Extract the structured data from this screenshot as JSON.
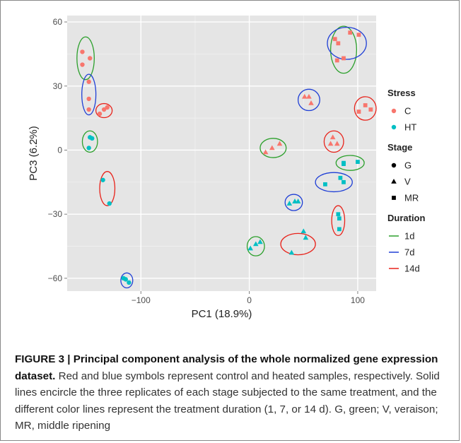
{
  "chart_data": {
    "type": "scatter",
    "xlabel": "PC1 (18.9%)",
    "ylabel": "PC3 (6.2%)",
    "xlim": [
      -168,
      117
    ],
    "ylim": [
      -66,
      63
    ],
    "xticks": [
      -100,
      0,
      100
    ],
    "xtick_labels": [
      "−100",
      "0",
      "100"
    ],
    "yticks": [
      -60,
      -30,
      0,
      30,
      60
    ],
    "ytick_labels": [
      "−60",
      "−30",
      "0",
      "30",
      "60"
    ],
    "grid": true,
    "legend_placement": "right",
    "legends": [
      {
        "title": "Stress",
        "kind": "color",
        "items": [
          {
            "label": "C",
            "color": "#F8766D"
          },
          {
            "label": "HT",
            "color": "#00BFC4"
          }
        ]
      },
      {
        "title": "Stage",
        "kind": "shape",
        "items": [
          {
            "label": "G",
            "shape": "circle"
          },
          {
            "label": "V",
            "shape": "triangle"
          },
          {
            "label": "MR",
            "shape": "square"
          }
        ]
      },
      {
        "title": "Duration",
        "kind": "line",
        "items": [
          {
            "label": "1d",
            "color": "#2CA02C"
          },
          {
            "label": "7d",
            "color": "#1F3FD6"
          },
          {
            "label": "14d",
            "color": "#E8231B"
          }
        ]
      }
    ],
    "groups": [
      {
        "stress": "C",
        "stage": "G",
        "duration": "1d",
        "ellipse": {
          "cx": -151,
          "cy": 43,
          "rx": 8,
          "ry": 10
        },
        "points": [
          [
            -154,
            46
          ],
          [
            -147,
            43
          ],
          [
            -154,
            40
          ]
        ]
      },
      {
        "stress": "C",
        "stage": "G",
        "duration": "7d",
        "ellipse": {
          "cx": -148,
          "cy": 26,
          "rx": 6.5,
          "ry": 9.5
        },
        "points": [
          [
            -148,
            32
          ],
          [
            -148,
            24
          ],
          [
            -148,
            19
          ]
        ]
      },
      {
        "stress": "C",
        "stage": "G",
        "duration": "14d",
        "ellipse": {
          "cx": -134,
          "cy": 18.5,
          "rx": 7.5,
          "ry": 3.3
        },
        "points": [
          [
            -138,
            17
          ],
          [
            -134,
            19
          ],
          [
            -131,
            20
          ]
        ]
      },
      {
        "stress": "HT",
        "stage": "G",
        "duration": "1d",
        "ellipse": {
          "cx": -147,
          "cy": 4,
          "rx": 7,
          "ry": 5
        },
        "points": [
          [
            -147,
            6
          ],
          [
            -145,
            5.5
          ],
          [
            -148,
            1
          ]
        ]
      },
      {
        "stress": "HT",
        "stage": "G",
        "duration": "14d",
        "ellipse": {
          "cx": -131,
          "cy": -18,
          "rx": 7,
          "ry": 8
        },
        "points": [
          [
            -135,
            -14
          ],
          [
            -129,
            -25
          ]
        ]
      },
      {
        "stress": "HT",
        "stage": "G",
        "duration": "7d",
        "ellipse": {
          "cx": -113,
          "cy": -61,
          "rx": 5.5,
          "ry": 3.5
        },
        "points": [
          [
            -116,
            -60
          ],
          [
            -114,
            -60.5
          ],
          [
            -111,
            -62
          ]
        ]
      },
      {
        "stress": "C",
        "stage": "MR",
        "duration": "1d",
        "ellipse": {
          "cx": 87,
          "cy": 47,
          "rx": 12,
          "ry": 11
        },
        "points": [
          [
            79,
            52
          ],
          [
            81,
            42
          ],
          [
            87,
            43
          ]
        ]
      },
      {
        "stress": "C",
        "stage": "MR",
        "duration": "7d",
        "ellipse": {
          "cx": 90,
          "cy": 50,
          "rx": 18,
          "ry": 7.5
        },
        "points": [
          [
            93,
            55
          ],
          [
            82,
            50
          ],
          [
            101,
            54
          ]
        ]
      },
      {
        "stress": "C",
        "stage": "MR",
        "duration": "14d",
        "ellipse": {
          "cx": 107,
          "cy": 19.5,
          "rx": 10,
          "ry": 5.5
        },
        "points": [
          [
            101,
            18
          ],
          [
            107,
            21
          ],
          [
            112,
            19
          ]
        ]
      },
      {
        "stress": "C",
        "stage": "V",
        "duration": "7d",
        "ellipse": {
          "cx": 55,
          "cy": 23.5,
          "rx": 10,
          "ry": 5
        },
        "points": [
          [
            51,
            25
          ],
          [
            55,
            25
          ],
          [
            57,
            22
          ]
        ]
      },
      {
        "stress": "C",
        "stage": "V",
        "duration": "1d",
        "ellipse": {
          "cx": 22,
          "cy": 1,
          "rx": 12,
          "ry": 4.5
        },
        "points": [
          [
            15,
            -1
          ],
          [
            21,
            1
          ],
          [
            28,
            3
          ]
        ]
      },
      {
        "stress": "C",
        "stage": "V",
        "duration": "14d",
        "ellipse": {
          "cx": 78,
          "cy": 4,
          "rx": 9,
          "ry": 5
        },
        "points": [
          [
            77,
            6
          ],
          [
            75,
            3
          ],
          [
            81,
            3
          ]
        ]
      },
      {
        "stress": "HT",
        "stage": "MR",
        "duration": "1d",
        "ellipse": {
          "cx": 93,
          "cy": -6,
          "rx": 13,
          "ry": 3.5
        },
        "points": [
          [
            87,
            -6
          ],
          [
            100,
            -5.5
          ],
          [
            87,
            -6.5
          ]
        ]
      },
      {
        "stress": "HT",
        "stage": "MR",
        "duration": "7d",
        "ellipse": {
          "cx": 78,
          "cy": -15,
          "rx": 17,
          "ry": 4.5
        },
        "points": [
          [
            70,
            -16
          ],
          [
            84,
            -13
          ],
          [
            87,
            -15
          ]
        ]
      },
      {
        "stress": "HT",
        "stage": "V",
        "duration": "7d",
        "ellipse": {
          "cx": 41,
          "cy": -24.5,
          "rx": 8,
          "ry": 3.8
        },
        "points": [
          [
            37,
            -25
          ],
          [
            42,
            -24
          ],
          [
            45,
            -24
          ]
        ]
      },
      {
        "stress": "HT",
        "stage": "MR",
        "duration": "14d",
        "ellipse": {
          "cx": 82,
          "cy": -33,
          "rx": 6,
          "ry": 7
        },
        "points": [
          [
            82,
            -30
          ],
          [
            83,
            -32
          ],
          [
            83,
            -37
          ]
        ]
      },
      {
        "stress": "HT",
        "stage": "V",
        "duration": "1d",
        "ellipse": {
          "cx": 6,
          "cy": -45,
          "rx": 8,
          "ry": 4.5
        },
        "points": [
          [
            1,
            -46
          ],
          [
            6,
            -44
          ],
          [
            10,
            -43
          ]
        ]
      },
      {
        "stress": "HT",
        "stage": "V",
        "duration": "14d",
        "ellipse": {
          "cx": 45,
          "cy": -44,
          "rx": 16,
          "ry": 5
        },
        "points": [
          [
            39,
            -48
          ],
          [
            50,
            -38
          ],
          [
            52,
            -41
          ]
        ]
      }
    ]
  },
  "caption": {
    "label": "FIGURE 3 | Principal component analysis of the whole normalized gene expression dataset.",
    "text": " Red and blue symbols represent control and heated samples, respectively. Solid lines encircle the three replicates of each stage subjected to the same treatment, and the different color lines represent the treatment duration (1, 7, or 14 d). G, green; V, veraison; MR, middle ripening"
  }
}
